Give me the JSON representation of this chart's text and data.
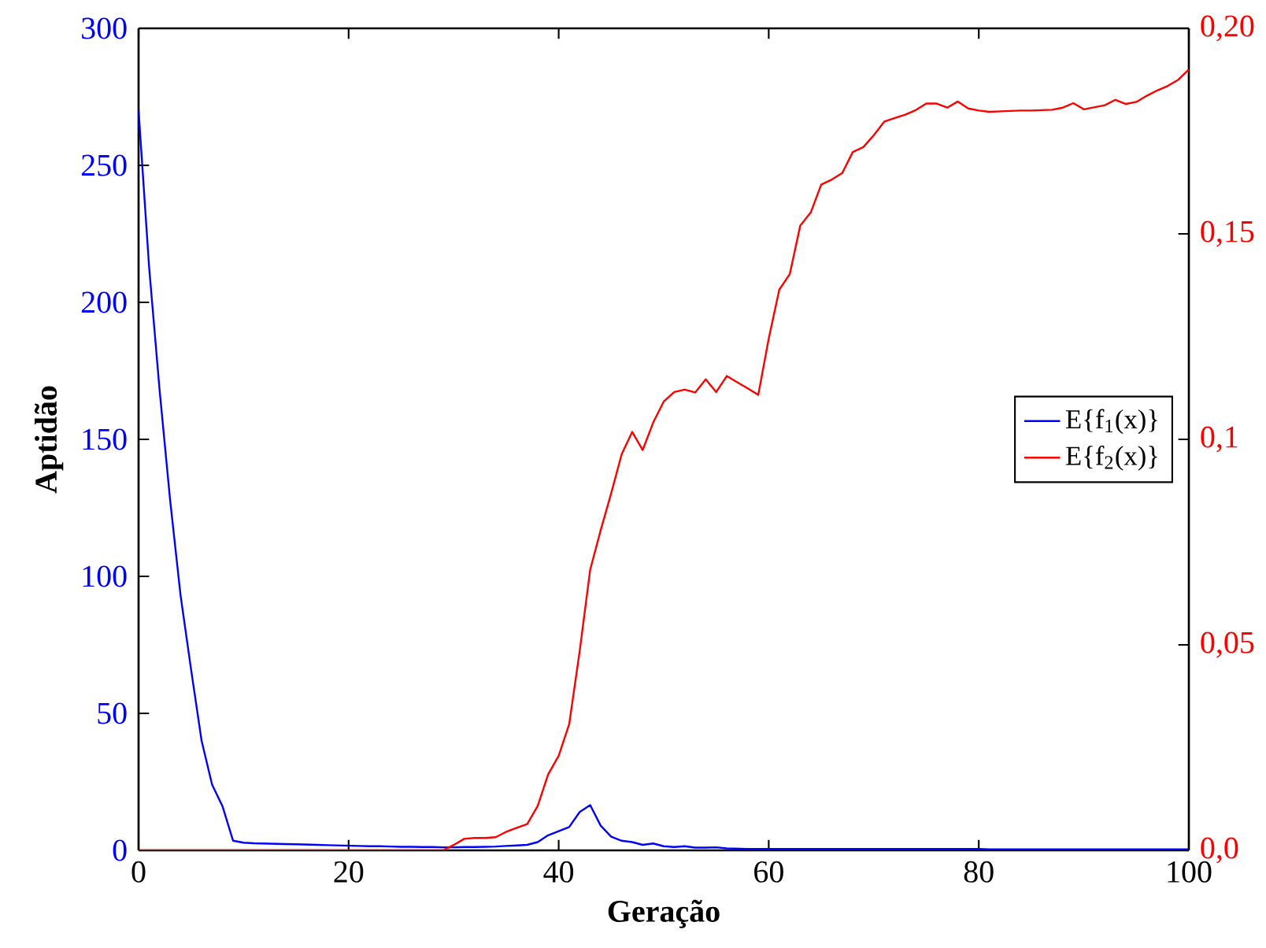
{
  "chart_data": {
    "type": "line",
    "xlabel": "Geração",
    "ylabel": "Aptidão",
    "x": [
      0,
      1,
      2,
      3,
      4,
      5,
      6,
      7,
      8,
      9,
      10,
      11,
      12,
      13,
      14,
      15,
      16,
      17,
      18,
      19,
      20,
      21,
      22,
      23,
      24,
      25,
      26,
      27,
      28,
      29,
      30,
      31,
      32,
      33,
      34,
      35,
      36,
      37,
      38,
      39,
      40,
      41,
      42,
      43,
      44,
      45,
      46,
      47,
      48,
      49,
      50,
      51,
      52,
      53,
      54,
      55,
      56,
      57,
      58,
      59,
      60,
      61,
      62,
      63,
      64,
      65,
      66,
      67,
      68,
      69,
      70,
      71,
      72,
      73,
      74,
      75,
      76,
      77,
      78,
      79,
      80,
      81,
      82,
      83,
      84,
      85,
      86,
      87,
      88,
      89,
      90,
      91,
      92,
      93,
      94,
      95,
      96,
      97,
      98,
      99,
      100
    ],
    "series": [
      {
        "name": "E{f$_{1}$(x)}",
        "color": "#0000ff",
        "axis": "y",
        "values": [
          270,
          213,
          168,
          128,
          93,
          66,
          40,
          24,
          16,
          3.5,
          2.8,
          2.6,
          2.5,
          2.4,
          2.3,
          2.2,
          2.1,
          2,
          1.9,
          1.8,
          1.7,
          1.6,
          1.5,
          1.5,
          1.4,
          1.3,
          1.3,
          1.2,
          1.2,
          1.1,
          1.1,
          1.2,
          1.2,
          1.3,
          1.4,
          1.6,
          1.8,
          2,
          3,
          5.5,
          7,
          8.5,
          14,
          16.5,
          9,
          5,
          3.5,
          3,
          2,
          2.5,
          1.5,
          1.2,
          1.5,
          1,
          1,
          1.1,
          0.7,
          0.6,
          0.5,
          0.5,
          0.5,
          0.5,
          0.5,
          0.5,
          0.5,
          0.5,
          0.5,
          0.5,
          0.5,
          0.5,
          0.5,
          0.5,
          0.5,
          0.5,
          0.5,
          0.5,
          0.5,
          0.5,
          0.5,
          0.5,
          0.5,
          0.4,
          0.4,
          0.4,
          0.4,
          0.4,
          0.4,
          0.4,
          0.4,
          0.4,
          0.4,
          0.4,
          0.4,
          0.4,
          0.4,
          0.4,
          0.4,
          0.4,
          0.4,
          0.4,
          0.4
        ]
      },
      {
        "name": "E{f$_{2}$(x)}",
        "color": "#ff0000",
        "axis": "y2",
        "values": [
          0,
          0,
          0,
          0,
          0,
          0,
          0,
          0,
          0,
          0,
          0,
          0,
          0,
          0,
          0,
          0,
          0,
          0,
          0,
          0,
          0,
          0,
          0,
          0,
          0,
          0,
          0,
          0,
          0,
          0,
          0.0013,
          0.0028,
          0.003,
          0.003,
          0.0032,
          0.0045,
          0.0055,
          0.0064,
          0.0108,
          0.0185,
          0.023,
          0.0307,
          0.0485,
          0.0683,
          0.0779,
          0.0869,
          0.0964,
          0.1018,
          0.0974,
          0.1041,
          0.1092,
          0.1115,
          0.1121,
          0.1114,
          0.1146,
          0.1115,
          0.1154,
          0.1139,
          0.1124,
          0.1108,
          0.1245,
          0.1364,
          0.1402,
          0.152,
          0.1552,
          0.162,
          0.1632,
          0.1648,
          0.1699,
          0.1711,
          0.174,
          0.1773,
          0.1782,
          0.179,
          0.1801,
          0.1817,
          0.1817,
          0.1807,
          0.1822,
          0.1805,
          0.18,
          0.1797,
          0.1798,
          0.1799,
          0.18,
          0.18,
          0.1801,
          0.1802,
          0.1807,
          0.1818,
          0.1803,
          0.1808,
          0.1813,
          0.1826,
          0.1816,
          0.1821,
          0.1836,
          0.1849,
          0.186,
          0.1875,
          0.19
        ]
      }
    ],
    "xlim": [
      0,
      100
    ],
    "xticks": [
      0,
      20,
      40,
      60,
      80,
      100
    ],
    "ylim": [
      0,
      300
    ],
    "yticks": [
      0,
      50,
      100,
      150,
      200,
      250,
      300
    ],
    "y2lim": [
      0,
      0.2
    ],
    "y2ticks": [
      {
        "value": 0,
        "label": "0,0"
      },
      {
        "value": 0.05,
        "label": "0,05"
      },
      {
        "value": 0.1,
        "label": "0,1"
      },
      {
        "value": 0.15,
        "label": "0,15"
      },
      {
        "value": 0.2,
        "label": "0,20"
      }
    ],
    "legend": "right",
    "grid": false,
    "marker": "none",
    "line_style": "solid"
  }
}
